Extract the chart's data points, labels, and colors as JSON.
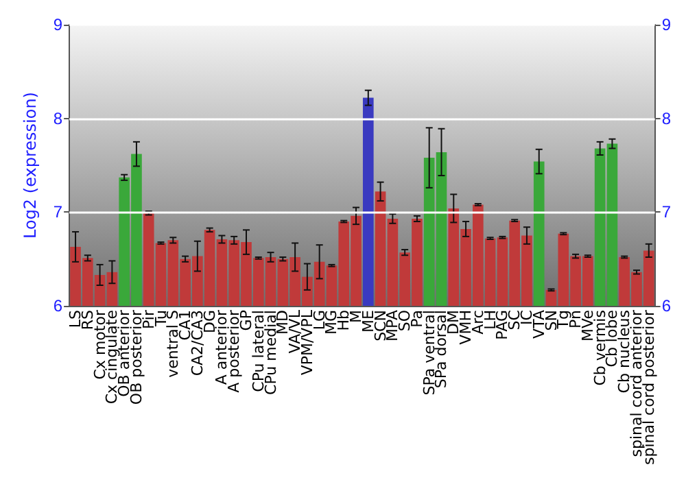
{
  "chart_data": {
    "type": "bar",
    "ylabel": "Log2 (expression)",
    "categories": [
      "LS",
      "RS",
      "Cx motor",
      "Cx cingulate",
      "OB anterior",
      "OB posterior",
      "Pir",
      "Tu",
      "ventral S",
      "CA1",
      "CA2/CA3",
      "DG",
      "A anterior",
      "A posterior",
      "GP",
      "CPu lateral",
      "CPu medial",
      "MD",
      "VA/VL",
      "VPM/VPL",
      "LG",
      "MG",
      "Hb",
      "M",
      "ME",
      "SCN",
      "MPA",
      "SO",
      "Pa",
      "SPa ventral",
      "SPa dorsal",
      "DM",
      "VMH",
      "Arc",
      "LH",
      "PAG",
      "SC",
      "IC",
      "VTA",
      "SN",
      "Tg",
      "Pn",
      "MVe",
      "Cb vermis",
      "Cb lobe",
      "Cb nucleus",
      "spinal cord anterior",
      "spinal cord posterior"
    ],
    "values": [
      6.63,
      6.51,
      6.33,
      6.36,
      7.37,
      7.62,
      6.99,
      6.67,
      6.7,
      6.5,
      6.53,
      6.81,
      6.71,
      6.7,
      6.68,
      6.51,
      6.52,
      6.5,
      6.52,
      6.31,
      6.47,
      6.43,
      6.9,
      6.96,
      8.22,
      7.22,
      6.93,
      6.57,
      6.93,
      7.58,
      7.64,
      7.04,
      6.82,
      7.08,
      6.72,
      6.73,
      6.91,
      6.75,
      7.54,
      6.17,
      6.77,
      6.53,
      6.53,
      7.68,
      7.73,
      6.52,
      6.36,
      6.59
    ],
    "errors": [
      0.16,
      0.03,
      0.11,
      0.12,
      0.03,
      0.13,
      0.02,
      0.01,
      0.03,
      0.03,
      0.16,
      0.02,
      0.04,
      0.04,
      0.13,
      0.01,
      0.05,
      0.02,
      0.15,
      0.14,
      0.18,
      0.01,
      0.01,
      0.09,
      0.08,
      0.1,
      0.05,
      0.03,
      0.03,
      0.32,
      0.25,
      0.15,
      0.08,
      0.01,
      0.01,
      0.01,
      0.01,
      0.09,
      0.13,
      0.01,
      0.01,
      0.02,
      0.01,
      0.07,
      0.05,
      0.01,
      0.02,
      0.07
    ],
    "colors": [
      "#c03a3a",
      "#c03a3a",
      "#c03a3a",
      "#c03a3a",
      "#3aa83a",
      "#3aa83a",
      "#c03a3a",
      "#c03a3a",
      "#c03a3a",
      "#c03a3a",
      "#c03a3a",
      "#c03a3a",
      "#c03a3a",
      "#c03a3a",
      "#c03a3a",
      "#c03a3a",
      "#c03a3a",
      "#c03a3a",
      "#c03a3a",
      "#c03a3a",
      "#c03a3a",
      "#c03a3a",
      "#c03a3a",
      "#c03a3a",
      "#3a3ac0",
      "#c03a3a",
      "#c03a3a",
      "#c03a3a",
      "#c03a3a",
      "#3aa83a",
      "#3aa83a",
      "#c03a3a",
      "#c03a3a",
      "#c03a3a",
      "#c03a3a",
      "#c03a3a",
      "#c03a3a",
      "#c03a3a",
      "#3aa83a",
      "#c03a3a",
      "#c03a3a",
      "#c03a3a",
      "#c03a3a",
      "#3aa83a",
      "#3aa83a",
      "#c03a3a",
      "#c03a3a",
      "#c03a3a"
    ],
    "ylim": [
      6,
      9
    ],
    "yticks": [
      6,
      7,
      8,
      9
    ],
    "y2lim": [
      6,
      9
    ],
    "y2ticks": [
      6,
      7,
      8,
      9
    ],
    "grid": "y"
  }
}
